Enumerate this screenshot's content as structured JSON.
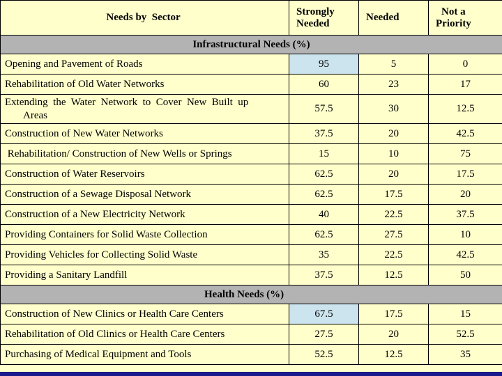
{
  "header": {
    "sector": "Needs by  Sector",
    "strongly_line1": "Strongly",
    "strongly_line2": "Needed",
    "needed": "Needed",
    "not_line1": "Not a",
    "not_line2": "Priority"
  },
  "sections": {
    "infrastructure": "Infrastructural Needs (%)",
    "health": "Health Needs (%)"
  },
  "infra_rows": [
    {
      "label": "Opening and Pavement of Roads",
      "strongly": "95",
      "needed": "5",
      "not": "0"
    },
    {
      "label": "Rehabilitation of Old Water Networks",
      "strongly": "60",
      "needed": "23",
      "not": "17"
    },
    {
      "label_line1": "Extending  the  Water  Network  to  Cover  New  Built  up",
      "label_line2": "Areas",
      "strongly": "57.5",
      "needed": "30",
      "not": "12.5"
    },
    {
      "label": "Construction of New Water Networks",
      "strongly": "37.5",
      "needed": "20",
      "not": "42.5"
    },
    {
      "label": " Rehabilitation/ Construction of New Wells or Springs",
      "strongly": "15",
      "needed": "10",
      "not": "75"
    },
    {
      "label": "Construction of Water Reservoirs",
      "strongly": "62.5",
      "needed": "20",
      "not": "17.5"
    },
    {
      "label": "Construction of a Sewage Disposal Network",
      "strongly": "62.5",
      "needed": "17.5",
      "not": "20"
    },
    {
      "label": "Construction of a New Electricity Network",
      "strongly": "40",
      "needed": "22.5",
      "not": "37.5"
    },
    {
      "label": "Providing Containers for Solid Waste Collection",
      "strongly": "62.5",
      "needed": "27.5",
      "not": "10"
    },
    {
      "label": "Providing Vehicles for Collecting Solid Waste",
      "strongly": "35",
      "needed": "22.5",
      "not": "42.5"
    },
    {
      "label": "Providing a Sanitary Landfill",
      "strongly": "37.5",
      "needed": "12.5",
      "not": "50"
    }
  ],
  "health_rows": [
    {
      "label": "Construction of New Clinics or Health Care Centers",
      "strongly": "67.5",
      "needed": "17.5",
      "not": "15"
    },
    {
      "label": "Rehabilitation of Old Clinics or Health Care Centers",
      "strongly": "27.5",
      "needed": "20",
      "not": "52.5"
    },
    {
      "label": "Purchasing of Medical Equipment and Tools",
      "strongly": "52.5",
      "needed": "12.5",
      "not": "35"
    }
  ],
  "colors": {
    "background": "#ffffcc",
    "section_band": "#b3b3b3",
    "highlight_cell": "#cce4ee",
    "bottom_bar": "#1a1a8c"
  }
}
